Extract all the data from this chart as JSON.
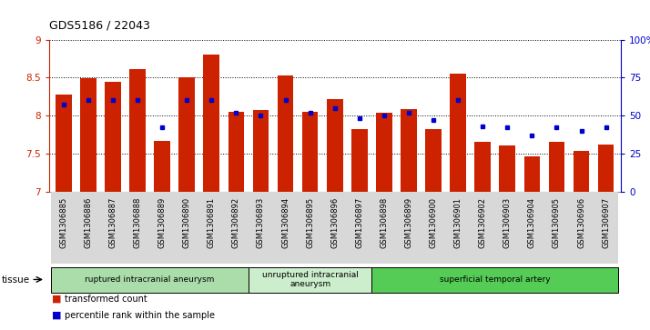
{
  "title": "GDS5186 / 22043",
  "samples": [
    "GSM1306885",
    "GSM1306886",
    "GSM1306887",
    "GSM1306888",
    "GSM1306889",
    "GSM1306890",
    "GSM1306891",
    "GSM1306892",
    "GSM1306893",
    "GSM1306894",
    "GSM1306895",
    "GSM1306896",
    "GSM1306897",
    "GSM1306898",
    "GSM1306899",
    "GSM1306900",
    "GSM1306901",
    "GSM1306902",
    "GSM1306903",
    "GSM1306904",
    "GSM1306905",
    "GSM1306906",
    "GSM1306907"
  ],
  "bar_values": [
    8.28,
    8.49,
    8.44,
    8.61,
    7.67,
    8.5,
    8.8,
    8.05,
    8.07,
    8.53,
    8.05,
    8.22,
    7.82,
    8.04,
    8.08,
    7.82,
    8.55,
    7.65,
    7.6,
    7.46,
    7.65,
    7.53,
    7.62
  ],
  "percentile_values": [
    57,
    60,
    60,
    60,
    42,
    60,
    60,
    52,
    50,
    60,
    52,
    55,
    48,
    50,
    52,
    47,
    60,
    43,
    42,
    37,
    42,
    40,
    42
  ],
  "ylim_left": [
    7,
    9
  ],
  "ylim_right": [
    0,
    100
  ],
  "yticks_left": [
    7,
    7.5,
    8,
    8.5,
    9
  ],
  "yticks_right": [
    0,
    25,
    50,
    75,
    100
  ],
  "yticklabels_right": [
    "0",
    "25",
    "50",
    "75",
    "100%"
  ],
  "bar_color": "#cc2200",
  "dot_color": "#0000cc",
  "bar_bottom": 7.0,
  "groups": [
    {
      "label": "ruptured intracranial aneurysm",
      "start": 0,
      "end": 8,
      "color": "#aaddaa"
    },
    {
      "label": "unruptured intracranial\naneurysm",
      "start": 8,
      "end": 13,
      "color": "#cceecc"
    },
    {
      "label": "superficial temporal artery",
      "start": 13,
      "end": 23,
      "color": "#55cc55"
    }
  ],
  "tissue_label": "tissue",
  "legend_bar_label": "transformed count",
  "legend_dot_label": "percentile rank within the sample",
  "bg_color": "#ffffff",
  "tick_bg_color": "#d8d8d8"
}
